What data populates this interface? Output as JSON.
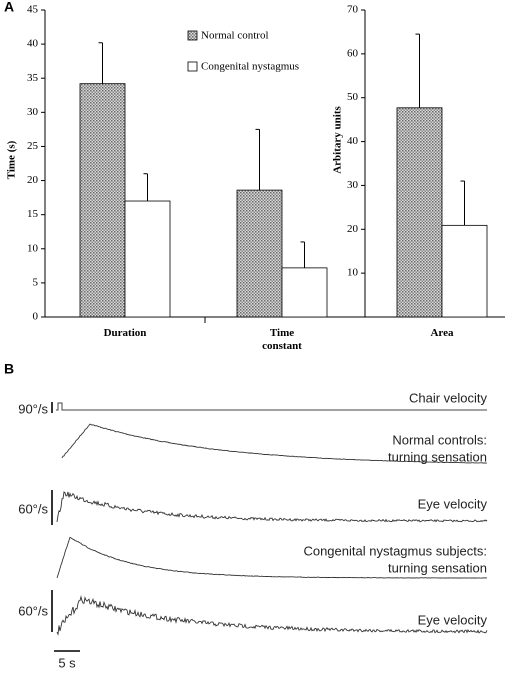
{
  "panel_labels": [
    "A",
    "B"
  ],
  "chart_data": [
    {
      "type": "bar",
      "ylabel": "Time (s)",
      "categories": [
        "Duration",
        "Time constant"
      ],
      "series": [
        {
          "name": "Normal control",
          "fill": "hatch",
          "values": [
            34.2,
            18.6
          ],
          "errors": [
            6.0,
            8.9
          ]
        },
        {
          "name": "Congenital nystagmus",
          "fill": "white",
          "values": [
            17.0,
            7.2
          ],
          "errors": [
            4.0,
            3.8
          ]
        }
      ],
      "ylim": [
        0,
        45
      ],
      "yticks": [
        0,
        5,
        10,
        15,
        20,
        25,
        30,
        35,
        40,
        45
      ]
    },
    {
      "type": "bar",
      "ylabel": "Arbitary units",
      "categories": [
        "Area"
      ],
      "series": [
        {
          "fill": "hatch",
          "values": [
            47.7
          ],
          "errors": [
            16.8
          ]
        },
        {
          "fill": "white",
          "values": [
            20.9
          ],
          "errors": [
            10.1
          ]
        }
      ],
      "ylim": [
        0,
        70
      ],
      "yticks": [
        10,
        20,
        30,
        40,
        50,
        60,
        70
      ]
    }
  ],
  "traces": {
    "chair": "Chair velocity",
    "normal_sensation": [
      "Normal controls:",
      "turning sensation"
    ],
    "normal_eye": "Eye velocity",
    "cn_sensation": [
      "Congenital nystagmus subjects:",
      "turning sensation"
    ],
    "cn_eye": "Eye velocity",
    "scale_chair": "90°/s",
    "scale_eye1": "60°/s",
    "scale_eye2": "60°/s",
    "scale_time": "5 s"
  }
}
